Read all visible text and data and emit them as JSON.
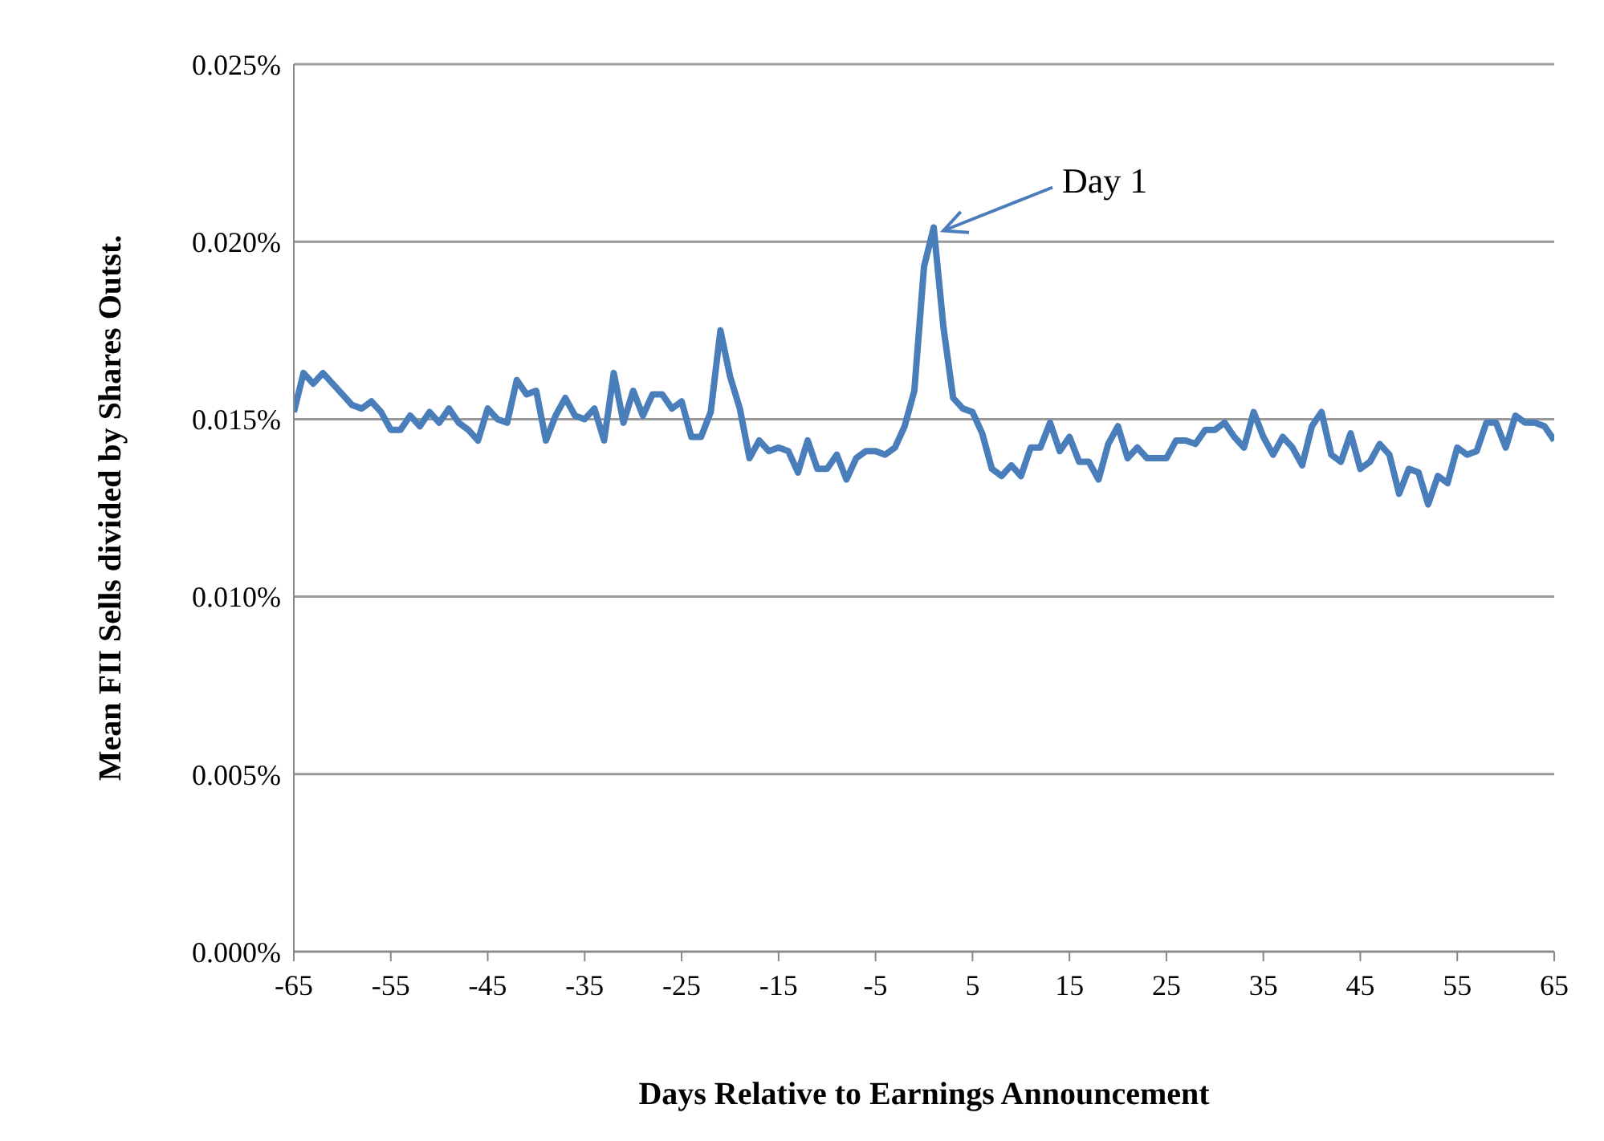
{
  "chart_data": {
    "type": "line",
    "xlabel": "Days Relative to Earnings Announcement",
    "ylabel": "Mean FII Sells divided by Shares Outst.",
    "x": [
      -65,
      -64,
      -63,
      -62,
      -61,
      -60,
      -59,
      -58,
      -57,
      -56,
      -55,
      -54,
      -53,
      -52,
      -51,
      -50,
      -49,
      -48,
      -47,
      -46,
      -45,
      -44,
      -43,
      -42,
      -41,
      -40,
      -39,
      -38,
      -37,
      -36,
      -35,
      -34,
      -33,
      -32,
      -31,
      -30,
      -29,
      -28,
      -27,
      -26,
      -25,
      -24,
      -23,
      -22,
      -21,
      -20,
      -19,
      -18,
      -17,
      -16,
      -15,
      -14,
      -13,
      -12,
      -11,
      -10,
      -9,
      -8,
      -7,
      -6,
      -5,
      -4,
      -3,
      -2,
      -1,
      0,
      1,
      2,
      3,
      4,
      5,
      6,
      7,
      8,
      9,
      10,
      11,
      12,
      13,
      14,
      15,
      16,
      17,
      18,
      19,
      20,
      21,
      22,
      23,
      24,
      25,
      26,
      27,
      28,
      29,
      30,
      31,
      32,
      33,
      34,
      35,
      36,
      37,
      38,
      39,
      40,
      41,
      42,
      43,
      44,
      45,
      46,
      47,
      48,
      49,
      50,
      51,
      52,
      53,
      54,
      55,
      56,
      57,
      58,
      59,
      60,
      61,
      62,
      63,
      64,
      65
    ],
    "series": [
      {
        "color": "#4a7ebb",
        "values": [
          0.0152,
          0.0163,
          0.016,
          0.0163,
          0.016,
          0.0157,
          0.0154,
          0.0153,
          0.0155,
          0.0152,
          0.0147,
          0.0147,
          0.0151,
          0.0148,
          0.0152,
          0.0149,
          0.0153,
          0.0149,
          0.0147,
          0.0144,
          0.0153,
          0.015,
          0.0149,
          0.0161,
          0.0157,
          0.0158,
          0.0144,
          0.0151,
          0.0156,
          0.0151,
          0.015,
          0.0153,
          0.0144,
          0.0163,
          0.0149,
          0.0158,
          0.0151,
          0.0157,
          0.0157,
          0.0153,
          0.0155,
          0.0145,
          0.0145,
          0.0152,
          0.0175,
          0.0162,
          0.0153,
          0.0139,
          0.0144,
          0.0141,
          0.0142,
          0.0141,
          0.0135,
          0.0144,
          0.0136,
          0.0136,
          0.014,
          0.0133,
          0.0139,
          0.0141,
          0.0141,
          0.014,
          0.0142,
          0.0148,
          0.0158,
          0.0193,
          0.0204,
          0.0176,
          0.0156,
          0.0153,
          0.0152,
          0.0146,
          0.0136,
          0.0134,
          0.0137,
          0.0134,
          0.0142,
          0.0142,
          0.0149,
          0.0141,
          0.0145,
          0.0138,
          0.0138,
          0.0133,
          0.0143,
          0.0148,
          0.0139,
          0.0142,
          0.0139,
          0.0139,
          0.0139,
          0.0144,
          0.0144,
          0.0143,
          0.0147,
          0.0147,
          0.0149,
          0.0145,
          0.0142,
          0.0152,
          0.0145,
          0.014,
          0.0145,
          0.0142,
          0.0137,
          0.0148,
          0.0152,
          0.014,
          0.0138,
          0.0146,
          0.0136,
          0.0138,
          0.0143,
          0.014,
          0.0129,
          0.0136,
          0.0135,
          0.0126,
          0.0134,
          0.0132,
          0.0142,
          0.014,
          0.0141,
          0.0149,
          0.0149,
          0.0142,
          0.0151,
          0.0149,
          0.0149,
          0.0148,
          0.0144
        ]
      }
    ],
    "xlim": [
      -65,
      65
    ],
    "xticks": [
      -65,
      -55,
      -45,
      -35,
      -25,
      -15,
      -5,
      5,
      15,
      25,
      35,
      45,
      55,
      65
    ],
    "ylim": [
      0,
      0.025
    ],
    "yticks": [
      {
        "value": 0,
        "label": "0.000%"
      },
      {
        "value": 0.005,
        "label": "0.005%"
      },
      {
        "value": 0.01,
        "label": "0.010%"
      },
      {
        "value": 0.015,
        "label": "0.015%"
      },
      {
        "value": 0.02,
        "label": "0.020%"
      },
      {
        "value": 0.025,
        "label": "0.025%"
      }
    ],
    "grid": "y",
    "legend": false,
    "marker": "none",
    "line_style": "solid",
    "annotations": [
      {
        "text": "Day 1",
        "x": 1,
        "y": 0.0204
      }
    ]
  }
}
